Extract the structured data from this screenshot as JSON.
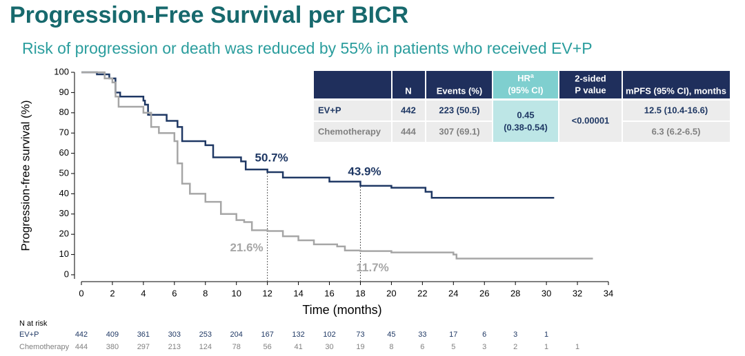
{
  "chart_data": {
    "type": "line",
    "title": "Progression-Free Survival per BICR",
    "subtitle": "Risk of progression or death was reduced by 55% in patients who received EV+P",
    "x_label": "Time (months)",
    "y_label": "Progression-free survival (%)",
    "xlim": [
      0,
      34
    ],
    "ylim": [
      0,
      100
    ],
    "xticks": [
      0,
      2,
      4,
      6,
      8,
      10,
      12,
      14,
      16,
      18,
      20,
      22,
      24,
      26,
      28,
      30,
      32,
      34
    ],
    "yticks": [
      0,
      10,
      20,
      30,
      40,
      50,
      60,
      70,
      80,
      90,
      100
    ],
    "step": true,
    "series": [
      {
        "name": "EV+P",
        "color": "#1f3864",
        "x": [
          0,
          1,
          1.8,
          2.2,
          2.5,
          4,
          4.1,
          4.3,
          5.5,
          6.2,
          6.5,
          8,
          8.5,
          10.3,
          10.6,
          12,
          13,
          16,
          18,
          20,
          22.2,
          22.6,
          30.5
        ],
        "values": [
          100,
          99,
          97,
          90,
          88,
          86,
          84,
          79,
          76,
          73,
          66,
          64,
          58,
          56,
          52,
          50.7,
          48,
          46,
          43.9,
          43,
          41,
          38,
          38
        ]
      },
      {
        "name": "Chemotherapy",
        "color": "#a6a6a6",
        "x": [
          0,
          1.5,
          2,
          2.2,
          2.4,
          4,
          4.5,
          5,
          6,
          6.2,
          6.5,
          7,
          8,
          9,
          10,
          10.5,
          11,
          12,
          13,
          14,
          15,
          16.5,
          17,
          18,
          20,
          24,
          24.2,
          33
        ],
        "values": [
          100,
          97,
          95,
          88,
          83,
          80,
          73,
          70,
          66,
          55,
          45,
          40,
          36,
          30,
          27,
          26,
          22,
          21.6,
          19,
          17,
          15,
          14,
          12,
          11.7,
          11,
          10,
          8,
          8
        ]
      }
    ],
    "annotations": [
      {
        "x": 12,
        "y": 50.7,
        "label": "50.7%",
        "series": 0
      },
      {
        "x": 18,
        "y": 43.9,
        "label": "43.9%",
        "series": 0
      },
      {
        "x": 12,
        "y": 21.6,
        "label": "21.6%",
        "series": 1
      },
      {
        "x": 18,
        "y": 11.7,
        "label": "11.7%",
        "series": 1
      }
    ],
    "at_risk": {
      "title": "N at risk",
      "rows": [
        {
          "name": "EV+P",
          "x": [
            0,
            2,
            4,
            6,
            8,
            10,
            12,
            14,
            16,
            18,
            20,
            22,
            24,
            26,
            28,
            30
          ],
          "values": [
            442,
            409,
            361,
            303,
            253,
            204,
            167,
            132,
            102,
            73,
            45,
            33,
            17,
            6,
            3,
            1
          ]
        },
        {
          "name": "Chemotherapy",
          "x": [
            0,
            2,
            4,
            6,
            8,
            10,
            12,
            14,
            16,
            18,
            20,
            22,
            24,
            26,
            28,
            30,
            32
          ],
          "values": [
            444,
            380,
            297,
            213,
            124,
            78,
            56,
            41,
            30,
            19,
            8,
            6,
            5,
            3,
            2,
            1,
            1
          ]
        }
      ]
    },
    "table": {
      "header": {
        "n": "N",
        "events": "Events (%)",
        "hr": "HR",
        "hr_sup": "a",
        "hr_ci": "(95% CI)",
        "p1": "2-sided",
        "p2": "P value",
        "mpfs": "mPFS (95% CI), months"
      },
      "rows": [
        {
          "arm": "EV+P",
          "n": "442",
          "events": "223 (50.5)",
          "mpfs": "12.5 (10.4-16.6)"
        },
        {
          "arm": "Chemotherapy",
          "n": "444",
          "events": "307 (69.1)",
          "mpfs": "6.3 (6.2-6.5)"
        }
      ],
      "hr": "0.45",
      "hr_ci": "(0.38-0.54)",
      "p": "<0.00001"
    }
  }
}
